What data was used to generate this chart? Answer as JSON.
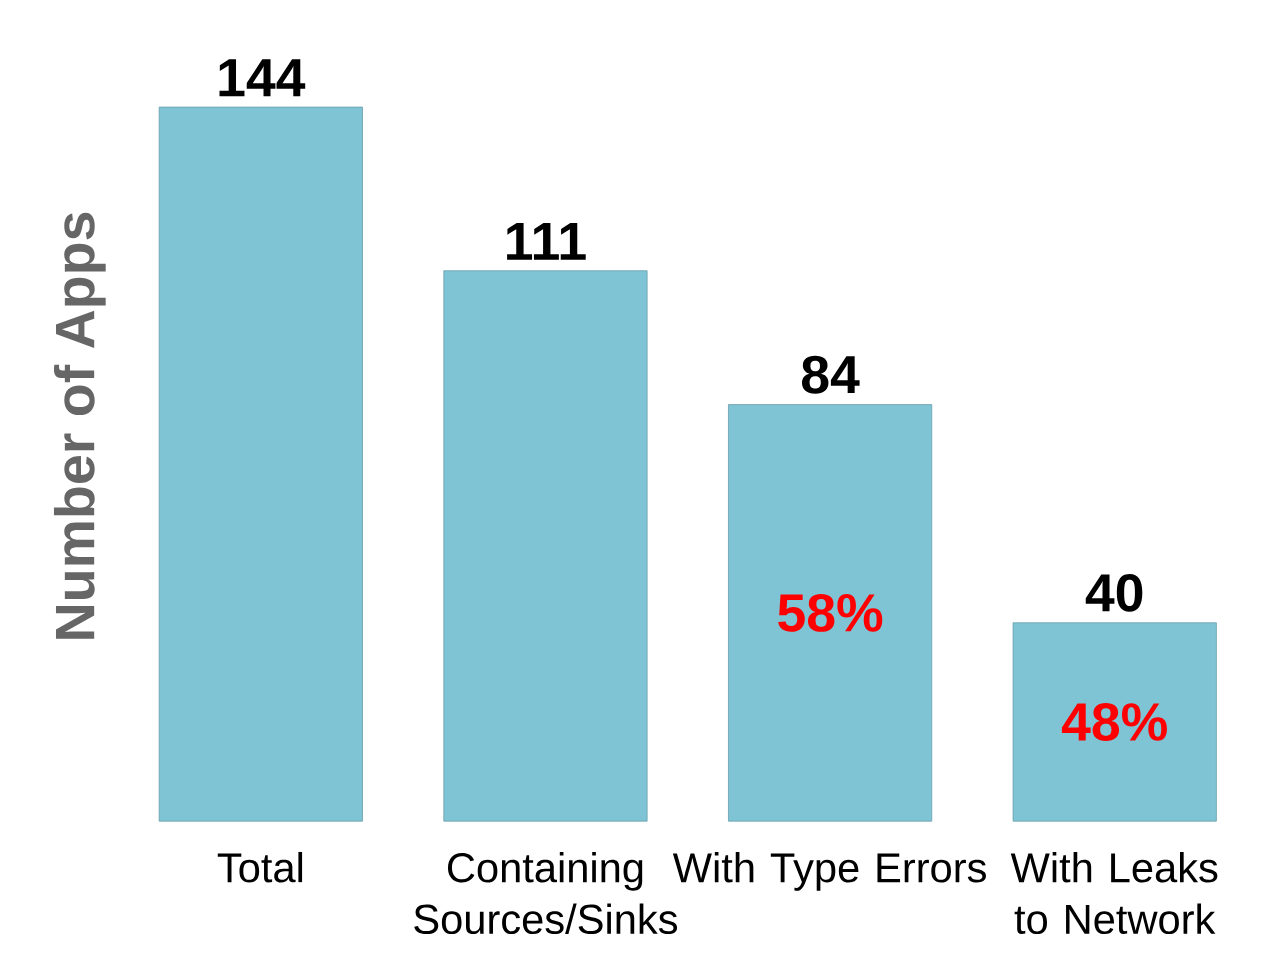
{
  "chart_data": {
    "type": "bar",
    "ylabel": "Number of Apps",
    "categories": [
      "Total",
      "Containing Sources/Sinks",
      "With Type Errors",
      "With Leaks to Network"
    ],
    "values": [
      144,
      111,
      84,
      40
    ],
    "color": "#7fc4d4",
    "data_labels": true,
    "annotations": [
      "58%",
      "48%"
    ]
  }
}
